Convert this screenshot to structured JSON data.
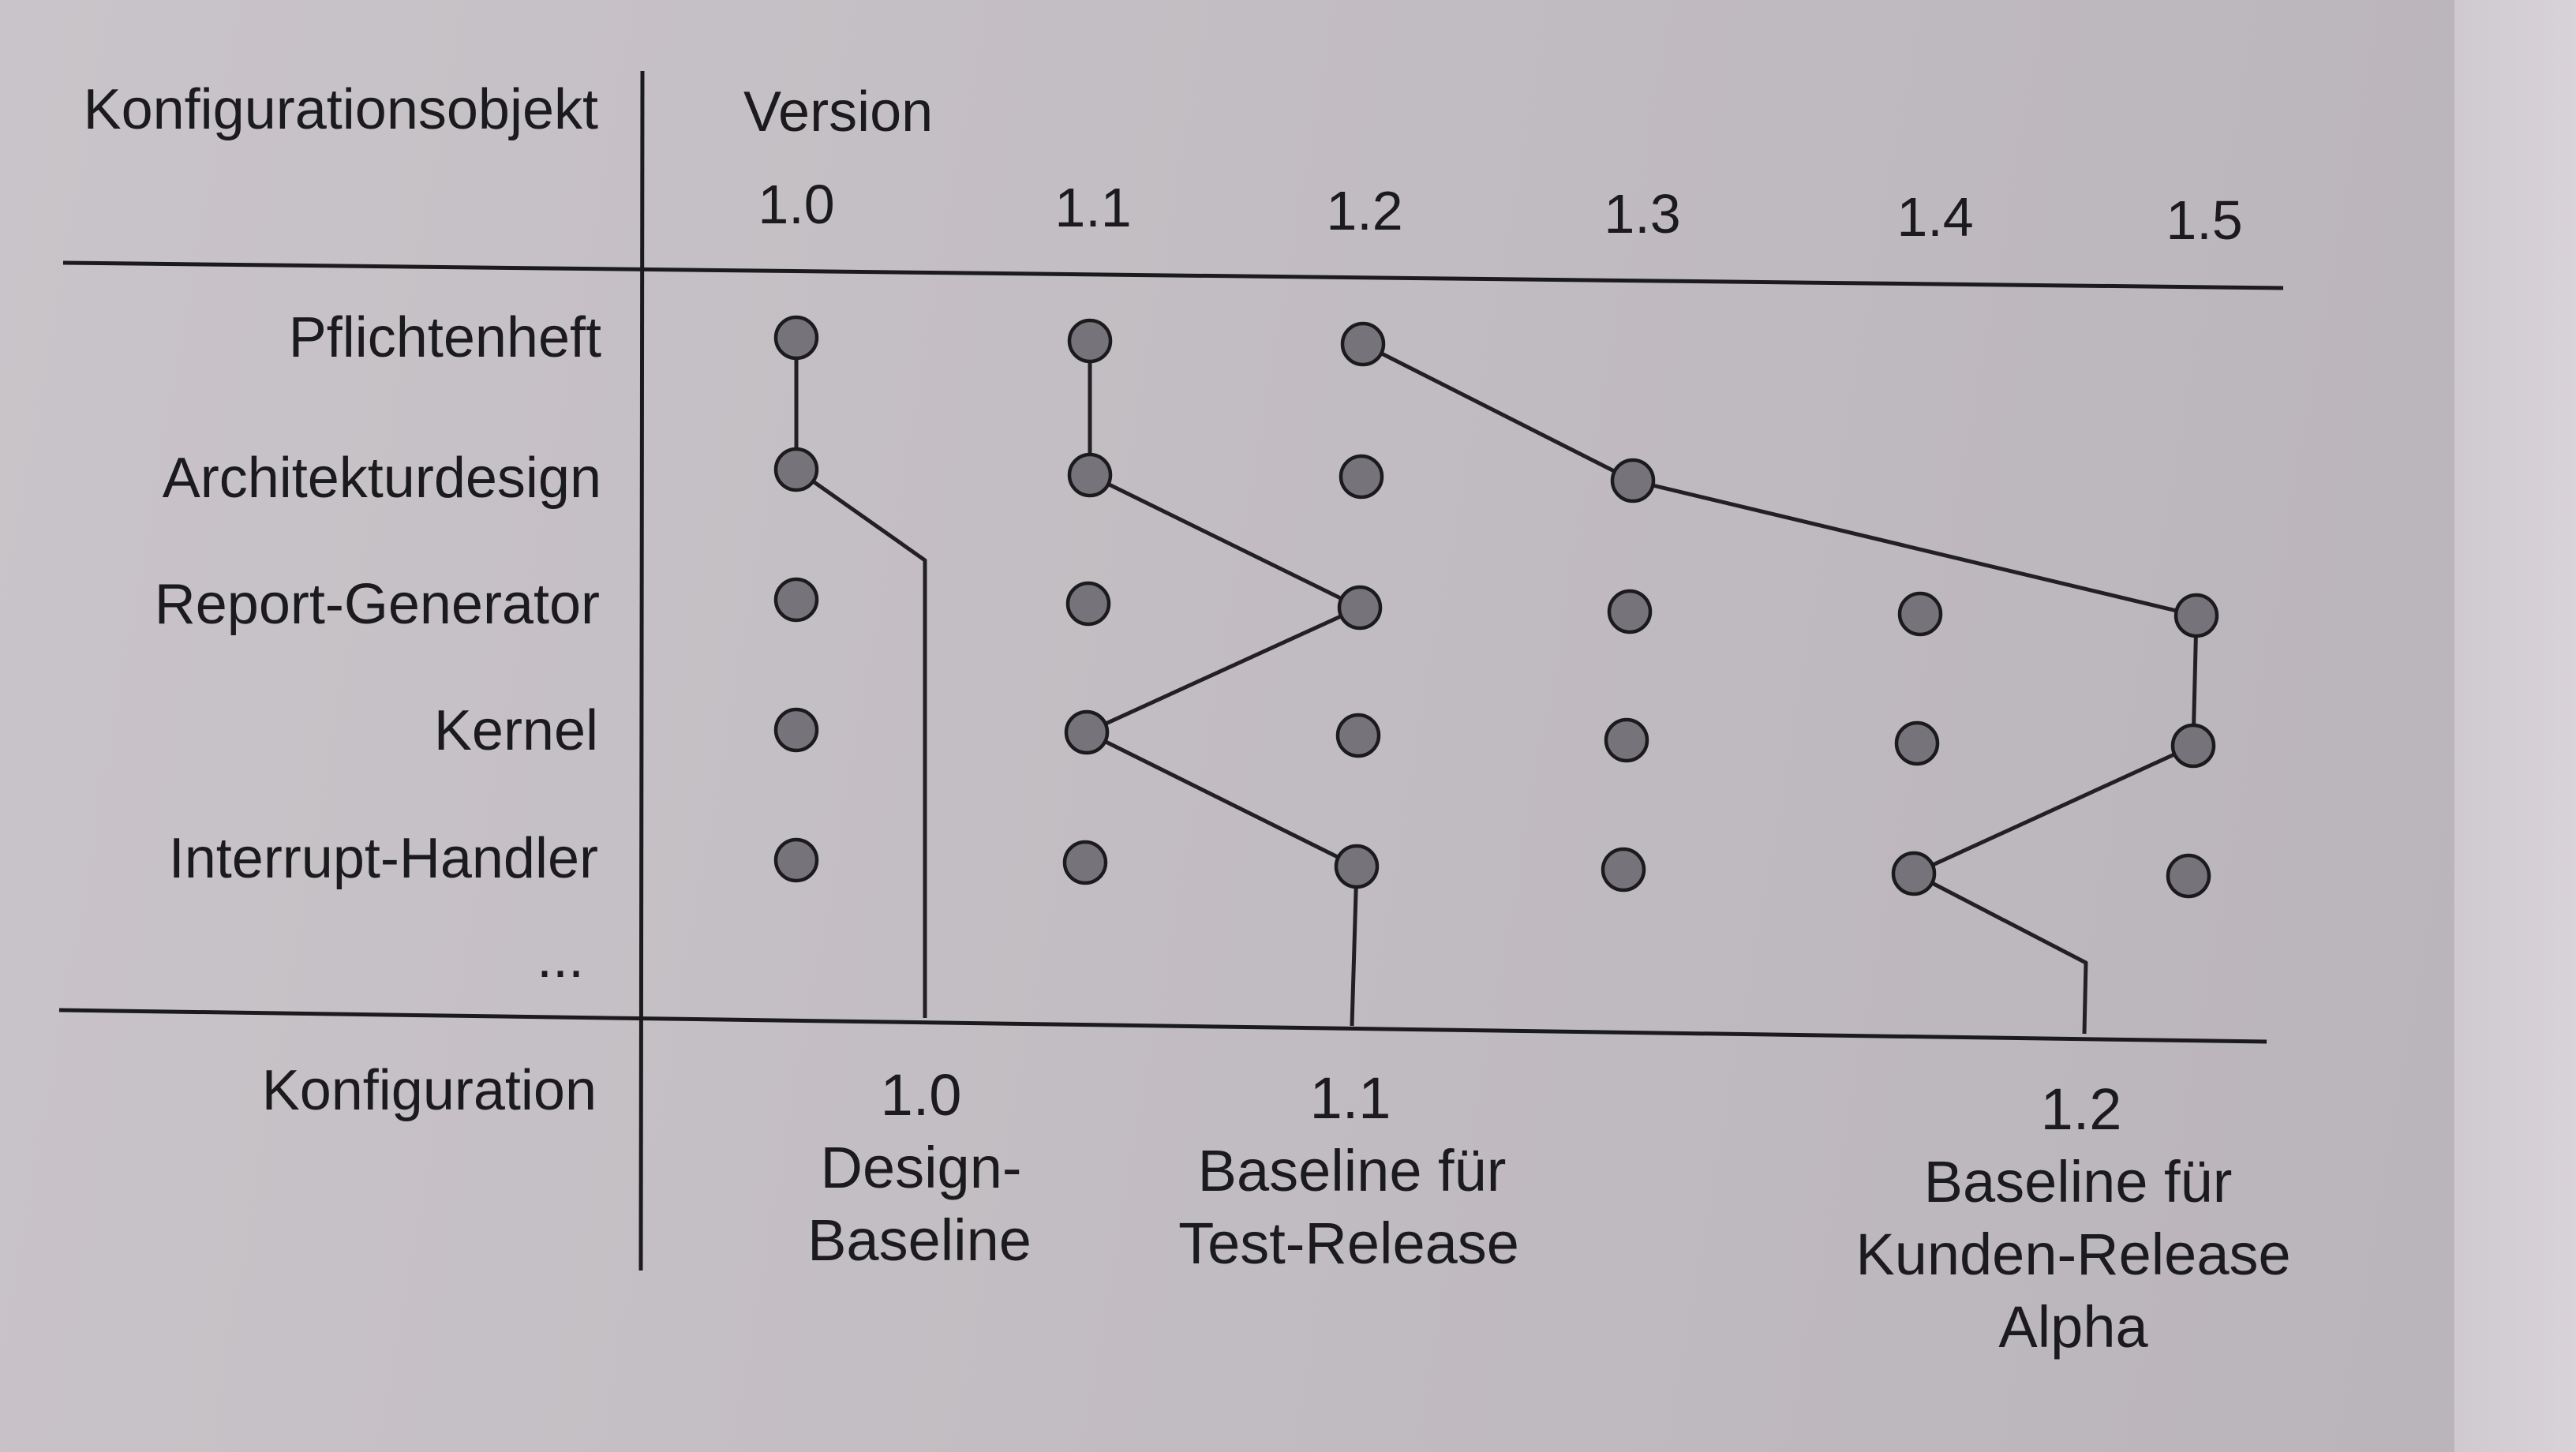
{
  "header": {
    "object_column_label": "Konfigurationsobjekt",
    "version_label": "Version"
  },
  "versions": [
    "1.0",
    "1.1",
    "1.2",
    "1.3",
    "1.4",
    "1.5"
  ],
  "objects": [
    "Pflichtenheft",
    "Architekturdesign",
    "Report-Generator",
    "Kernel",
    "Interrupt-Handler",
    "..."
  ],
  "footer": {
    "configuration_label": "Konfiguration"
  },
  "configurations": [
    {
      "number": "1.0",
      "desc_lines": [
        "Design-",
        "Baseline"
      ]
    },
    {
      "number": "1.1",
      "desc_lines": [
        "Baseline für",
        "Test-Release"
      ]
    },
    {
      "number": "1.2",
      "desc_lines": [
        "Baseline für",
        "Kunden-Release",
        "Alpha"
      ]
    }
  ],
  "dots": {
    "1.0": [
      "Pflichtenheft",
      "Architekturdesign",
      "Report-Generator",
      "Kernel",
      "Interrupt-Handler"
    ],
    "1.1": [
      "Pflichtenheft",
      "Architekturdesign",
      "Report-Generator",
      "Kernel",
      "Interrupt-Handler"
    ],
    "1.2": [
      "Pflichtenheft",
      "Architekturdesign",
      "Report-Generator",
      "Kernel",
      "Interrupt-Handler"
    ],
    "1.3": [
      "Architekturdesign",
      "Report-Generator",
      "Kernel",
      "Interrupt-Handler"
    ],
    "1.4": [
      "Report-Generator",
      "Kernel",
      "Interrupt-Handler"
    ],
    "1.5": [
      "Report-Generator",
      "Kernel",
      "Interrupt-Handler"
    ]
  },
  "baseline_paths": [
    {
      "configuration": "1.0",
      "members": [
        {
          "object": "Pflichtenheft",
          "version": "1.0"
        },
        {
          "object": "Architekturdesign",
          "version": "1.0"
        }
      ]
    },
    {
      "configuration": "1.1",
      "members": [
        {
          "object": "Pflichtenheft",
          "version": "1.1"
        },
        {
          "object": "Architekturdesign",
          "version": "1.1"
        },
        {
          "object": "Report-Generator",
          "version": "1.2"
        },
        {
          "object": "Kernel",
          "version": "1.1"
        },
        {
          "object": "Interrupt-Handler",
          "version": "1.2"
        }
      ]
    },
    {
      "configuration": "1.2",
      "members": [
        {
          "object": "Pflichtenheft",
          "version": "1.2"
        },
        {
          "object": "Architekturdesign",
          "version": "1.3"
        },
        {
          "object": "Report-Generator",
          "version": "1.5"
        },
        {
          "object": "Kernel",
          "version": "1.5"
        },
        {
          "object": "Interrupt-Handler",
          "version": "1.4"
        }
      ]
    }
  ]
}
